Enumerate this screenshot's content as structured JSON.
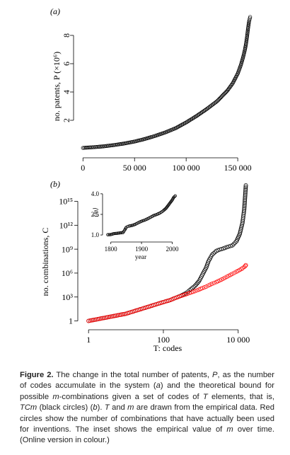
{
  "panel_a": {
    "label": "(a)",
    "ylabel": "no. patents, P (×10⁶)",
    "chart_data": {
      "type": "scatter",
      "title": "",
      "xlabel": "",
      "ylabel": "no. patents, P (×10⁶)",
      "xlim": [
        -5000,
        165000
      ],
      "ylim": [
        -0.2,
        9.6
      ],
      "x_ticks": [
        0,
        50000,
        100000,
        150000
      ],
      "x_tick_labels": [
        "0",
        "50 000",
        "100 000",
        "150 000"
      ],
      "y_ticks": [
        2,
        4,
        6,
        8
      ],
      "y_tick_labels": [
        "2",
        "4",
        "6",
        "8"
      ],
      "grid": false,
      "series": [
        {
          "color": "#000000",
          "marker": "open-circle",
          "x": [
            0,
            10000,
            20000,
            30000,
            40000,
            50000,
            60000,
            70000,
            80000,
            90000,
            100000,
            110000,
            120000,
            130000,
            140000,
            145000,
            150000,
            153000,
            155000,
            157000,
            158000,
            159000,
            160000,
            161000,
            162000
          ],
          "y": [
            0.05,
            0.1,
            0.16,
            0.25,
            0.36,
            0.5,
            0.68,
            0.9,
            1.15,
            1.45,
            1.85,
            2.3,
            2.8,
            3.35,
            4.1,
            4.6,
            5.3,
            5.9,
            6.4,
            7.0,
            7.4,
            7.9,
            8.5,
            9.0,
            9.3
          ]
        }
      ]
    }
  },
  "panel_b": {
    "label": "(b)",
    "ylabel": "no. combinations, C",
    "xlabel": "T: codes",
    "chart_data": {
      "type": "scatter",
      "title": "",
      "xlabel": "T: codes",
      "ylabel": "no. combinations, C",
      "x_scale": "log",
      "y_scale": "log",
      "xlim": [
        0.7,
        30000
      ],
      "ylim": [
        0.4,
        1e+17
      ],
      "x_ticks": [
        1,
        100,
        10000
      ],
      "x_tick_labels": [
        "1",
        "100",
        "10 000"
      ],
      "y_ticks": [
        1,
        1000,
        1000000,
        1000000000,
        1000000000000,
        1000000000000000
      ],
      "y_tick_labels": [
        "1",
        "10³",
        "10⁶",
        "10⁹",
        "10¹²",
        "10¹⁵"
      ],
      "grid": false,
      "series": [
        {
          "color": "#000000",
          "marker": "open-circle",
          "x": [
            1,
            10,
            20,
            40,
            60,
            100,
            150,
            200,
            300,
            400,
            500,
            700,
            900,
            1100,
            1400,
            1600,
            2000,
            2600,
            3200,
            4000,
            5000,
            7000,
            9000,
            11000,
            13000,
            14500,
            15500,
            16000
          ],
          "y": [
            1,
            8,
            22,
            60,
            110,
            230,
            400,
            700,
            1500,
            3000,
            7000,
            25000,
            100000,
            600000,
            5000000,
            30000000,
            200000000,
            600000000,
            900000000,
            1200000000,
            1800000000,
            3000000000,
            10000000000,
            80000000000,
            2000000000000,
            100000000000000,
            10000000000000000,
            100000000000000000
          ]
        },
        {
          "color": "#ff0000",
          "marker": "open-circle",
          "x": [
            1,
            10,
            20,
            40,
            60,
            100,
            150,
            200,
            300,
            400,
            500,
            700,
            900,
            1100,
            1400,
            1600,
            2000,
            2600,
            3200,
            4000,
            5000,
            7000,
            9000,
            11000,
            13000,
            14500,
            15500,
            16000
          ],
          "y": [
            1,
            8,
            22,
            60,
            110,
            230,
            400,
            700,
            1400,
            2200,
            3200,
            5500,
            8500,
            13000,
            20000,
            28000,
            45000,
            75000,
            120000,
            200000,
            350000,
            800000,
            1500000,
            2500000,
            4000000,
            6000000,
            8000000,
            10000000
          ]
        }
      ]
    },
    "inset": {
      "xlabel": "year",
      "ylabel": "⟨m⟩",
      "chart_data": {
        "type": "scatter",
        "title": "",
        "xlabel": "year",
        "ylabel": "⟨m⟩",
        "xlim": [
          1780,
          2015
        ],
        "ylim": [
          0.9,
          4.2
        ],
        "x_ticks": [
          1800,
          1900,
          2000
        ],
        "x_tick_labels": [
          "1800",
          "1900",
          "2000"
        ],
        "y_ticks": [
          1.0,
          2.5,
          4.0
        ],
        "y_tick_labels": [
          "1.0",
          "2.5",
          "4.0"
        ],
        "grid": false,
        "series": [
          {
            "color": "#000000",
            "marker": "open-circle",
            "x": [
              1790,
              1800,
              1810,
              1820,
              1830,
              1840,
              1845,
              1850,
              1855,
              1860,
              1870,
              1880,
              1890,
              1900,
              1910,
              1920,
              1930,
              1940,
              1950,
              1960,
              1970,
              1980,
              1990,
              2000,
              2005,
              2010
            ],
            "y": [
              1.02,
              1.03,
              1.1,
              1.12,
              1.15,
              1.18,
              1.35,
              1.55,
              1.62,
              1.65,
              1.7,
              1.78,
              1.9,
              2.0,
              2.08,
              2.18,
              2.3,
              2.42,
              2.5,
              2.6,
              2.75,
              2.95,
              3.25,
              3.55,
              3.75,
              3.85
            ]
          }
        ]
      }
    }
  },
  "caption": {
    "parts": [
      {
        "t": "Figure 2.",
        "s": "b"
      },
      {
        "t": " The change in the total number of patents, "
      },
      {
        "t": "P",
        "s": "i"
      },
      {
        "t": ", as the number of codes accumulate in the system ("
      },
      {
        "t": "a",
        "s": "i"
      },
      {
        "t": ") and the theoretical bound for possible "
      },
      {
        "t": "m",
        "s": "i"
      },
      {
        "t": "-combinations given a set of codes of "
      },
      {
        "t": "T",
        "s": "i"
      },
      {
        "t": " elements, that is, "
      },
      {
        "t": "TCm",
        "s": "i"
      },
      {
        "t": " (black circles) ("
      },
      {
        "t": "b",
        "s": "i"
      },
      {
        "t": "). "
      },
      {
        "t": "T",
        "s": "i"
      },
      {
        "t": " and "
      },
      {
        "t": "m",
        "s": "i"
      },
      {
        "t": " are drawn from the empirical data. Red circles show the number of combinations that have actually been used for inventions. The inset shows the empirical value of "
      },
      {
        "t": "m",
        "s": "i"
      },
      {
        "t": " over time. (Online version in colour.)"
      }
    ]
  }
}
